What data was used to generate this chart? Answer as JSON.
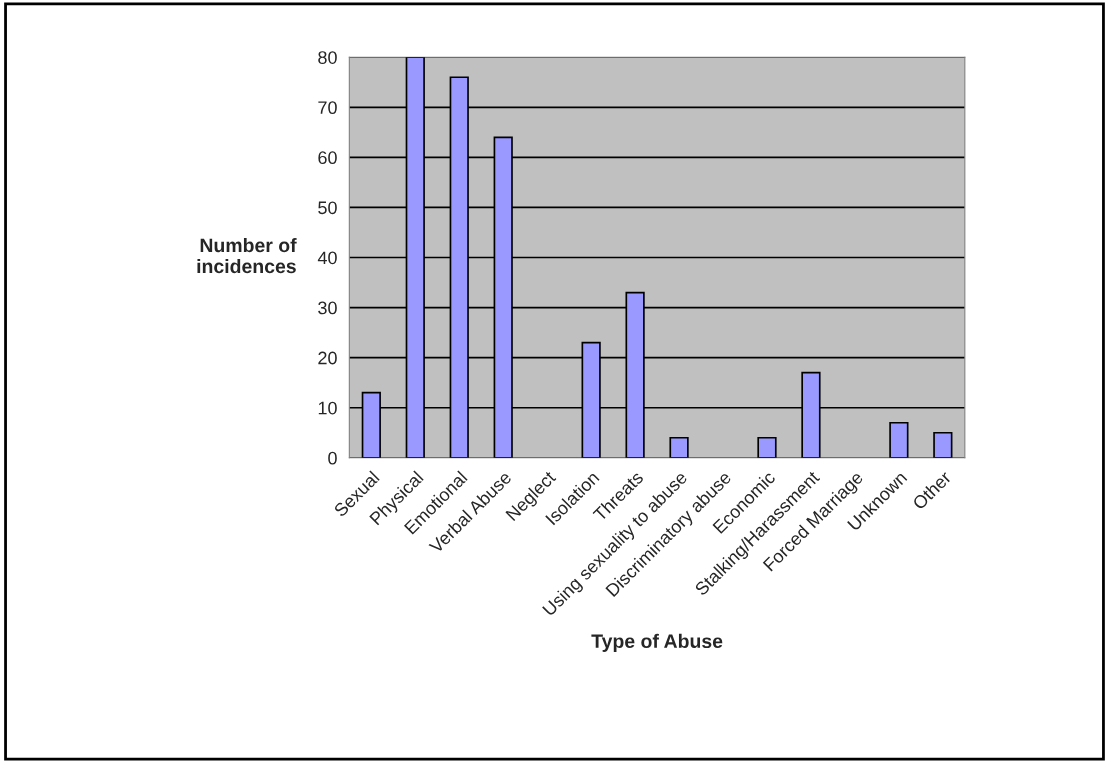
{
  "chart_data": {
    "type": "bar",
    "xlabel": "Type of Abuse",
    "ylabel": "Number of\nincidences",
    "categories": [
      "Sexual",
      "Physical",
      "Emotional",
      "Verbal Abuse",
      "Neglect",
      "Isolation",
      "Threats",
      "Using sexuality to abuse",
      "Discriminatory abuse",
      "Economic",
      "Stalking/Harassment",
      "Forced Marriage",
      "Unknown",
      "Other"
    ],
    "values": [
      13,
      80,
      76,
      64,
      0,
      23,
      33,
      4,
      0,
      4,
      17,
      0,
      7,
      5
    ],
    "color": "#9999ff",
    "ylim": [
      0,
      80
    ],
    "yticks": [
      0,
      10,
      20,
      30,
      40,
      50,
      60,
      70,
      80
    ],
    "grid": "y"
  }
}
